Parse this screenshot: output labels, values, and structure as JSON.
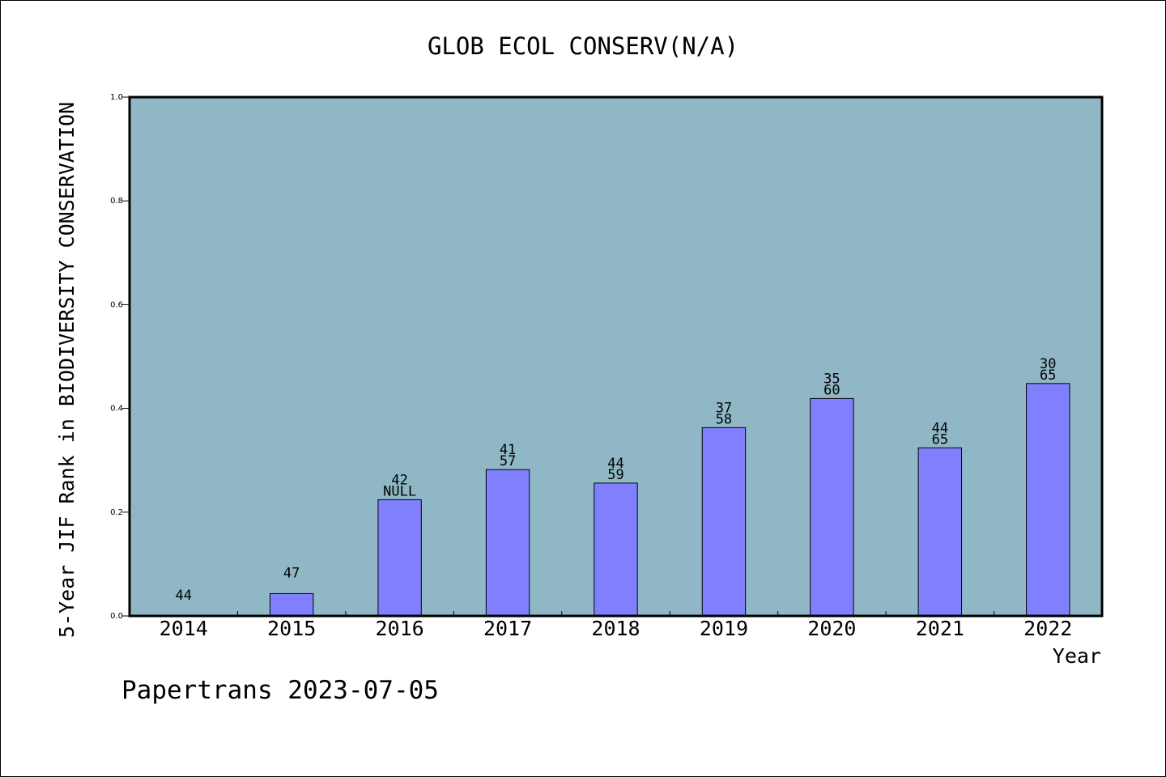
{
  "chart_data": {
    "type": "bar",
    "title": "GLOB ECOL CONSERV(N/A)",
    "xlabel": "Year",
    "ylabel": "5-Year JIF Rank in BIODIVERSITY CONSERVATION",
    "ylim": [
      0.0,
      1.0
    ],
    "yticks": [
      "0.0",
      "0.2",
      "0.4",
      "0.6",
      "0.8",
      "1.0"
    ],
    "categories": [
      "2014",
      "2015",
      "2016",
      "2017",
      "2018",
      "2019",
      "2020",
      "2021",
      "2022"
    ],
    "values": [
      0.0,
      0.043,
      0.224,
      0.282,
      0.256,
      0.363,
      0.419,
      0.324,
      0.448
    ],
    "bar_labels_top": [
      "",
      "",
      "42",
      "41",
      "44",
      "37",
      "35",
      "44",
      "30"
    ],
    "bar_labels_bottom": [
      "44",
      "47",
      "NULL",
      "57",
      "59",
      "58",
      "60",
      "65",
      "65"
    ],
    "grid": false,
    "legend": "none"
  },
  "footer": "Papertrans 2023-07-05",
  "colors": {
    "plot_background": "#8fb7c5",
    "bar_fill": "#8080ff",
    "bar_edge": "#000000",
    "page_background": "#ffffff"
  }
}
